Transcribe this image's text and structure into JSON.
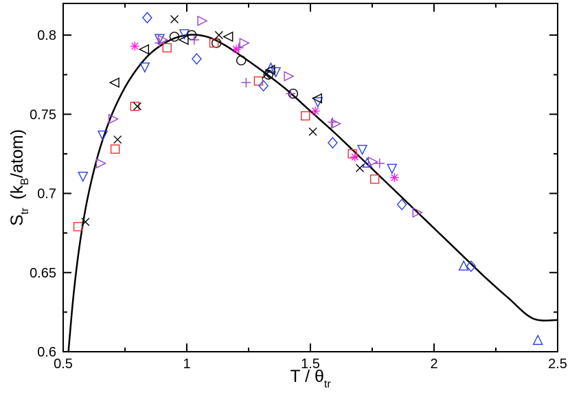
{
  "chart_data": {
    "type": "scatter",
    "title": "",
    "xlabel": {
      "main": "T / θ",
      "sub": "tr"
    },
    "ylabel": {
      "main": "S",
      "sub": "tr",
      "unit_prefix": "(k",
      "unit_sub": "B",
      "unit_suffix": "/atom)"
    },
    "xlim": [
      0.5,
      2.5
    ],
    "ylim": [
      0.6,
      0.82
    ],
    "xticks": [
      0.5,
      1,
      1.5,
      2,
      2.5
    ],
    "xtick_labels": [
      "0.5",
      "1",
      "1.5",
      "2",
      "2.5"
    ],
    "yticks": [
      0.6,
      0.65,
      0.7,
      0.75,
      0.8
    ],
    "ytick_labels": [
      "0.6",
      "0.65",
      "0.7",
      "0.75",
      "0.8"
    ],
    "grid": false,
    "legend": "none",
    "fit_curve": {
      "name": "",
      "color": "#000000",
      "x": [
        0.52,
        0.54,
        0.56,
        0.58,
        0.6,
        0.63,
        0.66,
        0.7,
        0.75,
        0.8,
        0.85,
        0.9,
        0.95,
        1.0,
        1.05,
        1.1,
        1.15,
        1.2,
        1.3,
        1.4,
        1.5,
        1.6,
        1.7,
        1.8,
        1.9,
        2.0,
        2.1,
        2.2,
        2.3,
        2.4,
        2.5
      ],
      "y": [
        0.598,
        0.633,
        0.66,
        0.681,
        0.698,
        0.718,
        0.734,
        0.751,
        0.767,
        0.779,
        0.788,
        0.794,
        0.798,
        0.8,
        0.8,
        0.798,
        0.794,
        0.789,
        0.778,
        0.766,
        0.752,
        0.738,
        0.723,
        0.708,
        0.693,
        0.678,
        0.663,
        0.648,
        0.634,
        0.621,
        0.62
      ]
    },
    "series": [
      {
        "marker": "circle",
        "color": "#000000",
        "points": [
          [
            0.95,
            0.799
          ],
          [
            1.02,
            0.8
          ],
          [
            1.12,
            0.795
          ],
          [
            1.22,
            0.784
          ],
          [
            1.33,
            0.775
          ],
          [
            1.43,
            0.763
          ]
        ]
      },
      {
        "marker": "square",
        "color": "#e8302f",
        "points": [
          [
            0.56,
            0.679
          ],
          [
            0.71,
            0.728
          ],
          [
            0.79,
            0.755
          ],
          [
            0.92,
            0.792
          ],
          [
            1.11,
            0.795
          ],
          [
            1.29,
            0.771
          ],
          [
            1.48,
            0.749
          ],
          [
            1.67,
            0.725
          ],
          [
            1.76,
            0.709
          ]
        ]
      },
      {
        "marker": "diamond",
        "color": "#2b3fe0",
        "points": [
          [
            0.84,
            0.811
          ],
          [
            1.04,
            0.785
          ],
          [
            1.31,
            0.768
          ],
          [
            1.59,
            0.732
          ],
          [
            1.87,
            0.693
          ],
          [
            2.15,
            0.654
          ]
        ]
      },
      {
        "marker": "triangle-up",
        "color": "#2b3fe0",
        "points": [
          [
            1.34,
            0.779
          ],
          [
            1.73,
            0.719
          ],
          [
            2.12,
            0.654
          ],
          [
            2.42,
            0.607
          ]
        ]
      },
      {
        "marker": "triangle-down",
        "color": "#2b3fe0",
        "points": [
          [
            0.58,
            0.711
          ],
          [
            0.66,
            0.737
          ],
          [
            0.83,
            0.78
          ],
          [
            0.89,
            0.798
          ],
          [
            0.99,
            0.801
          ],
          [
            1.36,
            0.777
          ],
          [
            1.53,
            0.758
          ],
          [
            1.71,
            0.728
          ],
          [
            1.83,
            0.716
          ]
        ]
      },
      {
        "marker": "triangle-left",
        "color": "#000000",
        "points": [
          [
            0.71,
            0.77
          ],
          [
            0.83,
            0.791
          ],
          [
            0.99,
            0.797
          ],
          [
            1.17,
            0.799
          ],
          [
            1.34,
            0.778
          ],
          [
            1.53,
            0.76
          ]
        ]
      },
      {
        "marker": "triangle-right",
        "color": "#9a3fc8",
        "points": [
          [
            0.65,
            0.719
          ],
          [
            0.7,
            0.747
          ],
          [
            0.9,
            0.797
          ],
          [
            1.06,
            0.809
          ],
          [
            1.23,
            0.795
          ],
          [
            1.41,
            0.774
          ],
          [
            1.6,
            0.744
          ],
          [
            1.75,
            0.72
          ],
          [
            1.93,
            0.688
          ]
        ]
      },
      {
        "marker": "x",
        "color": "#000000",
        "points": [
          [
            0.59,
            0.682
          ],
          [
            0.72,
            0.734
          ],
          [
            0.8,
            0.755
          ],
          [
            0.95,
            0.81
          ],
          [
            1.13,
            0.8
          ],
          [
            1.32,
            0.775
          ],
          [
            1.51,
            0.739
          ],
          [
            1.7,
            0.716
          ]
        ]
      },
      {
        "marker": "plus",
        "color": "#9a3fc8",
        "points": [
          [
            0.89,
            0.795
          ],
          [
            1.03,
            0.797
          ],
          [
            1.21,
            0.792
          ],
          [
            1.24,
            0.77
          ],
          [
            1.42,
            0.763
          ],
          [
            1.59,
            0.745
          ],
          [
            1.78,
            0.719
          ]
        ]
      },
      {
        "marker": "asterisk",
        "color": "#ff1de1",
        "points": [
          [
            0.79,
            0.793
          ],
          [
            1.2,
            0.791
          ],
          [
            1.52,
            0.752
          ],
          [
            1.68,
            0.723
          ],
          [
            1.84,
            0.71
          ]
        ]
      }
    ]
  }
}
